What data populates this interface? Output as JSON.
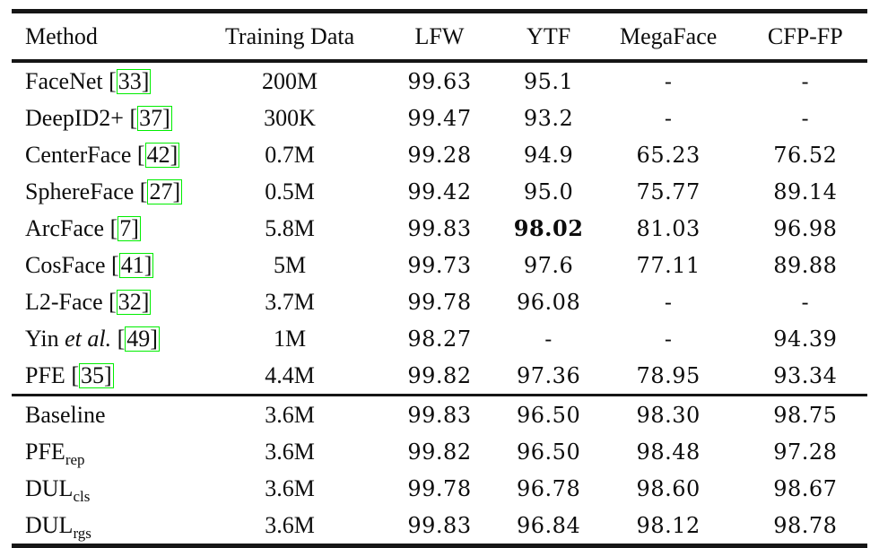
{
  "colors": {
    "background": "#ffffff",
    "text": "#0d0d0d",
    "rule": "#161616",
    "citation_box": "#00ee00"
  },
  "table": {
    "citation_open_bracket": "[",
    "citation_close_bracket": "]",
    "columns": [
      "Method",
      "Training Data",
      "LFW",
      "YTF",
      "MegaFace",
      "CFP-FP"
    ],
    "groups": [
      {
        "rows": [
          {
            "method": {
              "name": "FaceNet",
              "italic": "",
              "sub": "",
              "cite": "33"
            },
            "values": [
              "200M",
              "99.63",
              "95.1",
              "-",
              "-"
            ],
            "bold_value_index": -1
          },
          {
            "method": {
              "name": "DeepID2+",
              "italic": "",
              "sub": "",
              "cite": "37"
            },
            "values": [
              "300K",
              "99.47",
              "93.2",
              "-",
              "-"
            ],
            "bold_value_index": -1
          },
          {
            "method": {
              "name": "CenterFace",
              "italic": "",
              "sub": "",
              "cite": "42"
            },
            "values": [
              "0.7M",
              "99.28",
              "94.9",
              "65.23",
              "76.52"
            ],
            "bold_value_index": -1
          },
          {
            "method": {
              "name": "SphereFace",
              "italic": "",
              "sub": "",
              "cite": "27"
            },
            "values": [
              "0.5M",
              "99.42",
              "95.0",
              "75.77",
              "89.14"
            ],
            "bold_value_index": -1
          },
          {
            "method": {
              "name": "ArcFace",
              "italic": "",
              "sub": "",
              "cite": "7"
            },
            "values": [
              "5.8M",
              "99.83",
              "98.02",
              "81.03",
              "96.98"
            ],
            "bold_value_index": 2
          },
          {
            "method": {
              "name": "CosFace",
              "italic": "",
              "sub": "",
              "cite": "41"
            },
            "values": [
              "5M",
              "99.73",
              "97.6",
              "77.11",
              "89.88"
            ],
            "bold_value_index": -1
          },
          {
            "method": {
              "name": "L2-Face",
              "italic": "",
              "sub": "",
              "cite": "32"
            },
            "values": [
              "3.7M",
              "99.78",
              "96.08",
              "-",
              "-"
            ],
            "bold_value_index": -1
          },
          {
            "method": {
              "name": "Yin",
              "italic": "et al.",
              "sub": "",
              "cite": "49"
            },
            "values": [
              "1M",
              "98.27",
              "-",
              "-",
              "94.39"
            ],
            "bold_value_index": -1
          },
          {
            "method": {
              "name": "PFE",
              "italic": "",
              "sub": "",
              "cite": "35"
            },
            "values": [
              "4.4M",
              "99.82",
              "97.36",
              "78.95",
              "93.34"
            ],
            "bold_value_index": -1
          }
        ]
      },
      {
        "rows": [
          {
            "method": {
              "name": "Baseline",
              "italic": "",
              "sub": "",
              "cite": ""
            },
            "values": [
              "3.6M",
              "99.83",
              "96.50",
              "98.30",
              "98.75"
            ],
            "bold_value_index": -1
          },
          {
            "method": {
              "name": "PFE",
              "italic": "",
              "sub": "rep",
              "cite": ""
            },
            "values": [
              "3.6M",
              "99.82",
              "96.50",
              "98.48",
              "97.28"
            ],
            "bold_value_index": -1
          },
          {
            "method": {
              "name": "DUL",
              "italic": "",
              "sub": "cls",
              "cite": ""
            },
            "values": [
              "3.6M",
              "99.78",
              "96.78",
              "98.60",
              "98.67"
            ],
            "bold_value_index": -1
          },
          {
            "method": {
              "name": "DUL",
              "italic": "",
              "sub": "rgs",
              "cite": ""
            },
            "values": [
              "3.6M",
              "99.83",
              "96.84",
              "98.12",
              "98.78"
            ],
            "bold_value_index": -1
          }
        ]
      }
    ]
  }
}
